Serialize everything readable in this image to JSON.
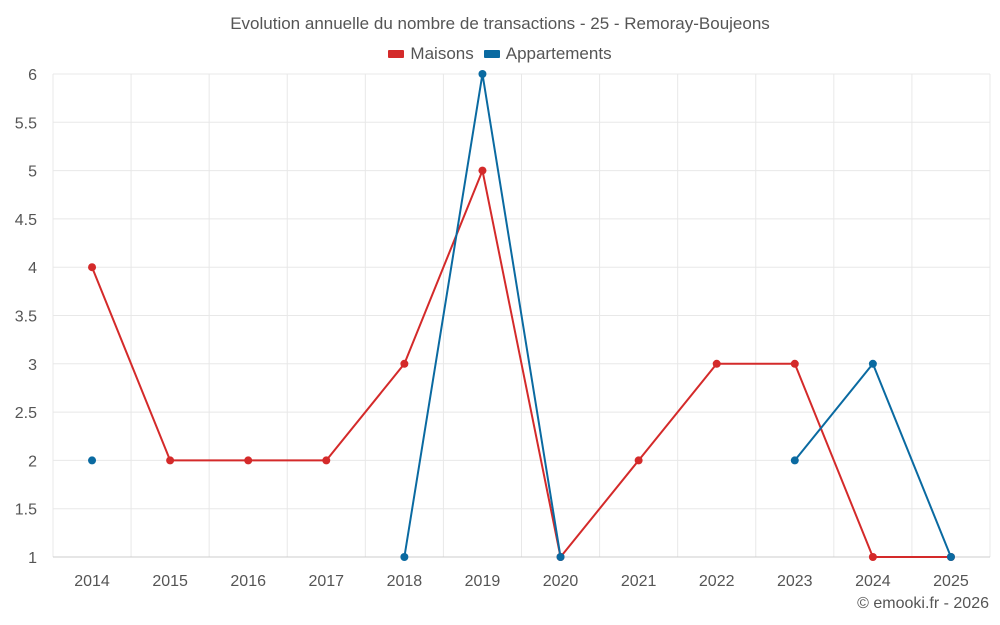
{
  "title": "Evolution annuelle du nombre de transactions - 25 - Remoray-Boujeons",
  "credit": "© emooki.fr - 2026",
  "colors": {
    "maisons": "#d42a2a",
    "appartements": "#0a6aa1",
    "grid": "#e8e8e8",
    "text": "#555555"
  },
  "chart_data": {
    "type": "line",
    "title": "Evolution annuelle du nombre de transactions - 25 - Remoray-Boujeons",
    "categories": [
      "2014",
      "2015",
      "2016",
      "2017",
      "2018",
      "2019",
      "2020",
      "2021",
      "2022",
      "2023",
      "2024",
      "2025"
    ],
    "yticks": [
      "1",
      "1.5",
      "2",
      "2.5",
      "3",
      "3.5",
      "4",
      "4.5",
      "5",
      "5.5",
      "6"
    ],
    "ylim": [
      1,
      6
    ],
    "grid": true,
    "legend_position": "top-center",
    "series": [
      {
        "name": "Maisons",
        "color": "#d42a2a",
        "values": [
          4,
          2,
          2,
          2,
          3,
          5,
          1,
          2,
          3,
          3,
          1,
          1
        ]
      },
      {
        "name": "Appartements",
        "color": "#0a6aa1",
        "values": [
          2,
          null,
          null,
          null,
          1,
          6,
          1,
          null,
          null,
          2,
          3,
          1
        ]
      }
    ]
  }
}
